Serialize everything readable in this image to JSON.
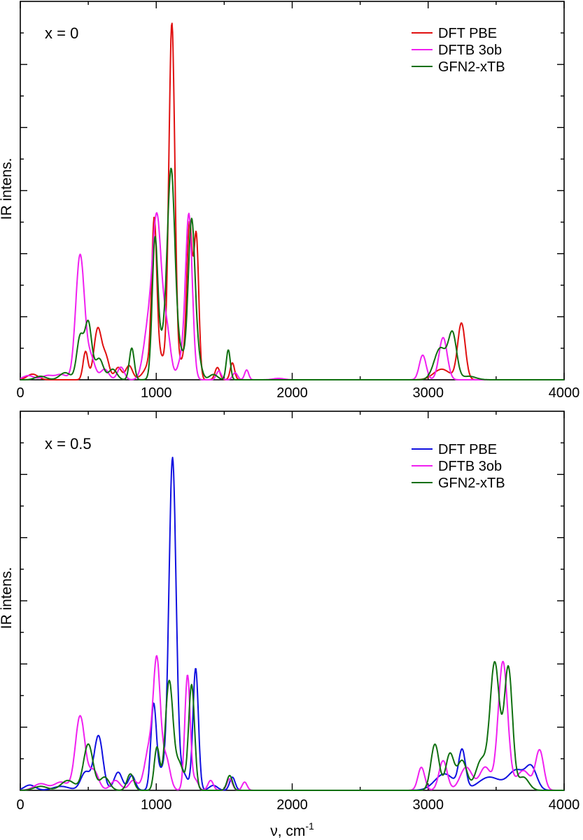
{
  "chart_data": [
    {
      "type": "line",
      "annotation": "x = 0",
      "xlabel": "",
      "ylabel": "IR intens.",
      "xlim": [
        0,
        4000
      ],
      "ylim": [
        0,
        1.0
      ],
      "x_ticks": [
        "0",
        "1000",
        "2000",
        "3000",
        "4000"
      ],
      "legend_position": "top-right",
      "grid": false,
      "series": [
        {
          "name": "DFT PBE",
          "color": "#e01010",
          "peaks": [
            {
              "center": 90,
              "height": 0.016,
              "width": 40
            },
            {
              "center": 480,
              "height": 0.08,
              "width": 18
            },
            {
              "center": 570,
              "height": 0.145,
              "width": 28
            },
            {
              "center": 630,
              "height": 0.06,
              "width": 25
            },
            {
              "center": 720,
              "height": 0.035,
              "width": 25
            },
            {
              "center": 800,
              "height": 0.04,
              "width": 25
            },
            {
              "center": 985,
              "height": 0.385,
              "width": 18
            },
            {
              "center": 1000,
              "height": 0.08,
              "width": 60
            },
            {
              "center": 1115,
              "height": 1.0,
              "width": 22
            },
            {
              "center": 1195,
              "height": 0.05,
              "width": 30
            },
            {
              "center": 1245,
              "height": 0.43,
              "width": 20
            },
            {
              "center": 1295,
              "height": 0.4,
              "width": 18
            },
            {
              "center": 1450,
              "height": 0.035,
              "width": 18
            },
            {
              "center": 1560,
              "height": 0.048,
              "width": 16
            },
            {
              "center": 3100,
              "height": 0.03,
              "width": 60
            },
            {
              "center": 3245,
              "height": 0.16,
              "width": 28
            }
          ]
        },
        {
          "name": "DFTB 3ob",
          "color": "#f020f0",
          "peaks": [
            {
              "center": 60,
              "height": 0.012,
              "width": 40
            },
            {
              "center": 200,
              "height": 0.012,
              "width": 40
            },
            {
              "center": 300,
              "height": 0.015,
              "width": 40
            },
            {
              "center": 440,
              "height": 0.355,
              "width": 32
            },
            {
              "center": 520,
              "height": 0.06,
              "width": 30
            },
            {
              "center": 620,
              "height": 0.03,
              "width": 30
            },
            {
              "center": 740,
              "height": 0.036,
              "width": 25
            },
            {
              "center": 940,
              "height": 0.14,
              "width": 35
            },
            {
              "center": 1005,
              "height": 0.44,
              "width": 32
            },
            {
              "center": 1075,
              "height": 0.14,
              "width": 30
            },
            {
              "center": 1240,
              "height": 0.47,
              "width": 25
            },
            {
              "center": 1180,
              "height": 0.05,
              "width": 25
            },
            {
              "center": 1460,
              "height": 0.025,
              "width": 18
            },
            {
              "center": 1580,
              "height": 0.02,
              "width": 18
            },
            {
              "center": 1665,
              "height": 0.028,
              "width": 15
            },
            {
              "center": 1900,
              "height": 0.004,
              "width": 40
            },
            {
              "center": 2960,
              "height": 0.07,
              "width": 25
            },
            {
              "center": 3110,
              "height": 0.12,
              "width": 30
            }
          ]
        },
        {
          "name": "GFN2-xTB",
          "color": "#107010",
          "peaks": [
            {
              "center": 150,
              "height": 0.01,
              "width": 40
            },
            {
              "center": 330,
              "height": 0.02,
              "width": 40
            },
            {
              "center": 440,
              "height": 0.12,
              "width": 25
            },
            {
              "center": 500,
              "height": 0.16,
              "width": 25
            },
            {
              "center": 580,
              "height": 0.06,
              "width": 30
            },
            {
              "center": 680,
              "height": 0.03,
              "width": 30
            },
            {
              "center": 820,
              "height": 0.09,
              "width": 18
            },
            {
              "center": 990,
              "height": 0.36,
              "width": 20
            },
            {
              "center": 1040,
              "height": 0.1,
              "width": 40
            },
            {
              "center": 1110,
              "height": 0.575,
              "width": 28
            },
            {
              "center": 1180,
              "height": 0.07,
              "width": 30
            },
            {
              "center": 1260,
              "height": 0.45,
              "width": 25
            },
            {
              "center": 1310,
              "height": 0.05,
              "width": 25
            },
            {
              "center": 1420,
              "height": 0.015,
              "width": 30
            },
            {
              "center": 1530,
              "height": 0.085,
              "width": 15
            },
            {
              "center": 3090,
              "height": 0.09,
              "width": 45
            },
            {
              "center": 3180,
              "height": 0.125,
              "width": 30
            },
            {
              "center": 3300,
              "height": 0.01,
              "width": 50
            }
          ]
        }
      ]
    },
    {
      "type": "line",
      "annotation": "x = 0.5",
      "xlabel": "ν, cm",
      "xlabel_superscript": "-1",
      "ylabel": "IR intens.",
      "xlim": [
        0,
        4000
      ],
      "ylim": [
        0,
        1.0
      ],
      "x_ticks": [
        "0",
        "1000",
        "2000",
        "3000",
        "4000"
      ],
      "legend_position": "top-right",
      "grid": false,
      "series": [
        {
          "name": "DFT PBE",
          "color": "#1010e0",
          "peaks": [
            {
              "center": 70,
              "height": 0.016,
              "width": 40
            },
            {
              "center": 300,
              "height": 0.012,
              "width": 60
            },
            {
              "center": 480,
              "height": 0.055,
              "width": 35
            },
            {
              "center": 575,
              "height": 0.165,
              "width": 32
            },
            {
              "center": 720,
              "height": 0.055,
              "width": 30
            },
            {
              "center": 820,
              "height": 0.045,
              "width": 25
            },
            {
              "center": 980,
              "height": 0.245,
              "width": 20
            },
            {
              "center": 1040,
              "height": 0.06,
              "width": 40
            },
            {
              "center": 1120,
              "height": 1.0,
              "width": 26
            },
            {
              "center": 1200,
              "height": 0.05,
              "width": 30
            },
            {
              "center": 1290,
              "height": 0.37,
              "width": 20
            },
            {
              "center": 1420,
              "height": 0.015,
              "width": 30
            },
            {
              "center": 1560,
              "height": 0.04,
              "width": 20
            },
            {
              "center": 3120,
              "height": 0.05,
              "width": 70
            },
            {
              "center": 3250,
              "height": 0.115,
              "width": 25
            },
            {
              "center": 3450,
              "height": 0.04,
              "width": 80
            },
            {
              "center": 3650,
              "height": 0.06,
              "width": 60
            },
            {
              "center": 3760,
              "height": 0.065,
              "width": 40
            }
          ]
        },
        {
          "name": "DFTB 3ob",
          "color": "#f020f0",
          "peaks": [
            {
              "center": 150,
              "height": 0.02,
              "width": 50
            },
            {
              "center": 300,
              "height": 0.025,
              "width": 50
            },
            {
              "center": 440,
              "height": 0.225,
              "width": 35
            },
            {
              "center": 540,
              "height": 0.06,
              "width": 35
            },
            {
              "center": 700,
              "height": 0.03,
              "width": 35
            },
            {
              "center": 830,
              "height": 0.03,
              "width": 30
            },
            {
              "center": 950,
              "height": 0.13,
              "width": 35
            },
            {
              "center": 1005,
              "height": 0.36,
              "width": 25
            },
            {
              "center": 1070,
              "height": 0.1,
              "width": 30
            },
            {
              "center": 1230,
              "height": 0.35,
              "width": 20
            },
            {
              "center": 1290,
              "height": 0.03,
              "width": 20
            },
            {
              "center": 1400,
              "height": 0.03,
              "width": 20
            },
            {
              "center": 1540,
              "height": 0.035,
              "width": 20
            },
            {
              "center": 1650,
              "height": 0.025,
              "width": 18
            },
            {
              "center": 2950,
              "height": 0.07,
              "width": 25
            },
            {
              "center": 3110,
              "height": 0.09,
              "width": 30
            },
            {
              "center": 3280,
              "height": 0.07,
              "width": 45
            },
            {
              "center": 3420,
              "height": 0.07,
              "width": 40
            },
            {
              "center": 3550,
              "height": 0.39,
              "width": 35
            },
            {
              "center": 3700,
              "height": 0.06,
              "width": 50
            },
            {
              "center": 3820,
              "height": 0.12,
              "width": 30
            }
          ]
        },
        {
          "name": "GFN2-xTB",
          "color": "#107010",
          "peaks": [
            {
              "center": 150,
              "height": 0.012,
              "width": 50
            },
            {
              "center": 350,
              "height": 0.03,
              "width": 50
            },
            {
              "center": 500,
              "height": 0.14,
              "width": 35
            },
            {
              "center": 620,
              "height": 0.04,
              "width": 35
            },
            {
              "center": 810,
              "height": 0.05,
              "width": 25
            },
            {
              "center": 1005,
              "height": 0.13,
              "width": 20
            },
            {
              "center": 1095,
              "height": 0.33,
              "width": 28
            },
            {
              "center": 1170,
              "height": 0.08,
              "width": 30
            },
            {
              "center": 1260,
              "height": 0.32,
              "width": 22
            },
            {
              "center": 1540,
              "height": 0.045,
              "width": 20
            },
            {
              "center": 3050,
              "height": 0.14,
              "width": 30
            },
            {
              "center": 3160,
              "height": 0.11,
              "width": 30
            },
            {
              "center": 3250,
              "height": 0.09,
              "width": 35
            },
            {
              "center": 3390,
              "height": 0.09,
              "width": 40
            },
            {
              "center": 3490,
              "height": 0.385,
              "width": 35
            },
            {
              "center": 3590,
              "height": 0.37,
              "width": 30
            },
            {
              "center": 3700,
              "height": 0.04,
              "width": 40
            }
          ]
        }
      ]
    }
  ]
}
